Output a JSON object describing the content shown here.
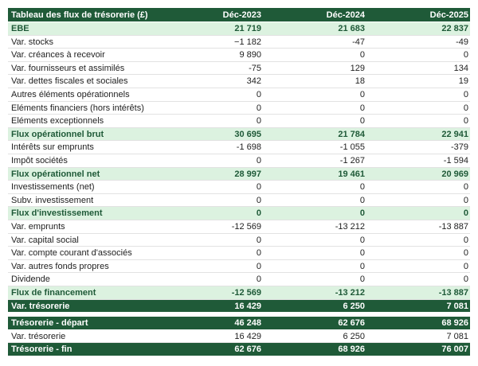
{
  "table": {
    "header": [
      "Tableau des flux de trésorerie (£)",
      "Déc-2023",
      "Déc-2024",
      "Déc-2025"
    ],
    "colors": {
      "dark": "#1f5a38",
      "light": "#dcf2e0",
      "accent": "#1f5a38"
    },
    "rows": [
      {
        "label": "EBE",
        "style": "subtotal",
        "values": [
          "21 719",
          "21 683",
          "22 837"
        ]
      },
      {
        "label": "Var. stocks",
        "style": "line",
        "values": [
          "−1 182",
          "-47",
          "-49"
        ]
      },
      {
        "label": "Var. créances à recevoir",
        "style": "line",
        "values": [
          "9 890",
          "0",
          "0"
        ]
      },
      {
        "label": "Var. fournisseurs et assimilés",
        "style": "line",
        "values": [
          "-75",
          "129",
          "134"
        ]
      },
      {
        "label": "Var. dettes fiscales et sociales",
        "style": "line",
        "values": [
          "342",
          "18",
          "19"
        ]
      },
      {
        "label": "Autres éléments opérationnels",
        "style": "line",
        "values": [
          "0",
          "0",
          "0"
        ]
      },
      {
        "label": "Eléments financiers (hors intérêts)",
        "style": "line",
        "values": [
          "0",
          "0",
          "0"
        ]
      },
      {
        "label": "Eléments exceptionnels",
        "style": "line",
        "values": [
          "0",
          "0",
          "0"
        ]
      },
      {
        "label": "Flux opérationnel brut",
        "style": "subtotal",
        "values": [
          "30 695",
          "21 784",
          "22 941"
        ]
      },
      {
        "label": "Intérêts sur emprunts",
        "style": "line",
        "values": [
          "-1 698",
          "-1 055",
          "-379"
        ]
      },
      {
        "label": "Impôt sociétés",
        "style": "line",
        "values": [
          "0",
          "-1 267",
          "-1 594"
        ]
      },
      {
        "label": "Flux opérationnel net",
        "style": "subtotal",
        "values": [
          "28 997",
          "19 461",
          "20 969"
        ]
      },
      {
        "label": "Investissements (net)",
        "style": "line",
        "values": [
          "0",
          "0",
          "0"
        ]
      },
      {
        "label": "Subv. investissement",
        "style": "line",
        "values": [
          "0",
          "0",
          "0"
        ]
      },
      {
        "label": "Flux d'investissement",
        "style": "subtotal",
        "values": [
          "0",
          "0",
          "0"
        ]
      },
      {
        "label": "Var. emprunts",
        "style": "line",
        "values": [
          "-12 569",
          "-13 212",
          "-13 887"
        ]
      },
      {
        "label": "Var. capital social",
        "style": "line",
        "values": [
          "0",
          "0",
          "0"
        ]
      },
      {
        "label": "Var. compte courant d'associés",
        "style": "line",
        "values": [
          "0",
          "0",
          "0"
        ]
      },
      {
        "label": "Var. autres fonds propres",
        "style": "line",
        "values": [
          "0",
          "0",
          "0"
        ]
      },
      {
        "label": "Dividende",
        "style": "line",
        "values": [
          "0",
          "0",
          "0"
        ]
      },
      {
        "label": "Flux de financement",
        "style": "subtotal",
        "values": [
          "-12 569",
          "-13 212",
          "-13 887"
        ]
      },
      {
        "label": "Var. trésorerie",
        "style": "total",
        "values": [
          "16 429",
          "6 250",
          "7 081"
        ]
      }
    ]
  },
  "summary": {
    "rows": [
      {
        "label": "Trésorerie - départ",
        "style": "total",
        "values": [
          "46 248",
          "62 676",
          "68 926"
        ]
      },
      {
        "label": "Var. trésorerie",
        "style": "line",
        "values": [
          "16 429",
          "6 250",
          "7 081"
        ]
      },
      {
        "label": "Trésorerie - fin",
        "style": "total",
        "values": [
          "62 676",
          "68 926",
          "76 007"
        ]
      }
    ]
  }
}
